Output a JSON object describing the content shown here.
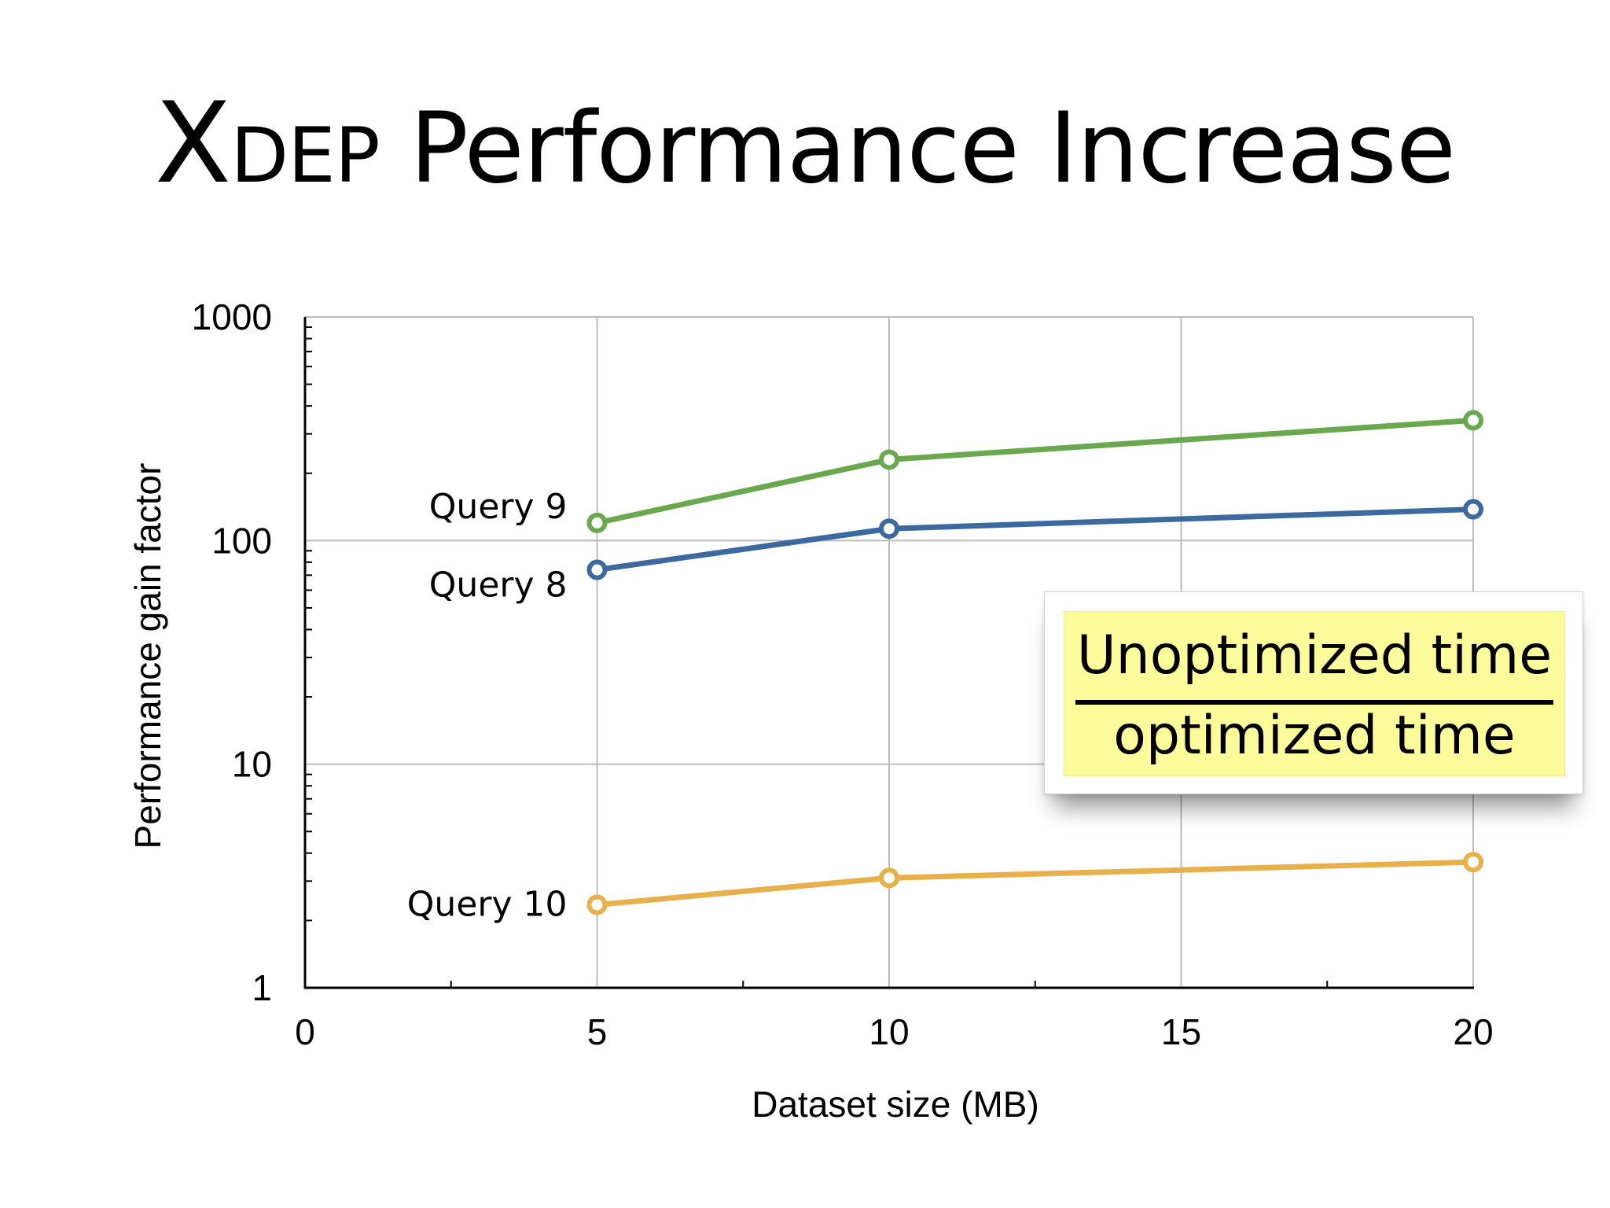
{
  "title": {
    "first_letter": "X",
    "small_caps": "DEP",
    "rest": " Performance Increase"
  },
  "note": {
    "numerator": "Unoptimized time",
    "denominator": "optimized time"
  },
  "chart_data": {
    "type": "line",
    "xlabel": "Dataset size (MB)",
    "ylabel": "Performance gain factor",
    "xlim": [
      0,
      20
    ],
    "ylim": [
      1,
      1000
    ],
    "yscale": "log",
    "x_ticks": [
      "0",
      "5",
      "10",
      "15",
      "20"
    ],
    "y_ticks": [
      "1",
      "10",
      "100",
      "1000"
    ],
    "grid": true,
    "x": [
      5,
      10,
      20
    ],
    "series": [
      {
        "name": "Query 9",
        "values": [
          120,
          230,
          345
        ],
        "color": "#6aa84f"
      },
      {
        "name": "Query 8",
        "values": [
          74,
          113,
          138
        ],
        "color": "#3d6a9e"
      },
      {
        "name": "Query 10",
        "values": [
          2.35,
          3.1,
          3.65
        ],
        "color": "#e8b04b"
      }
    ]
  }
}
